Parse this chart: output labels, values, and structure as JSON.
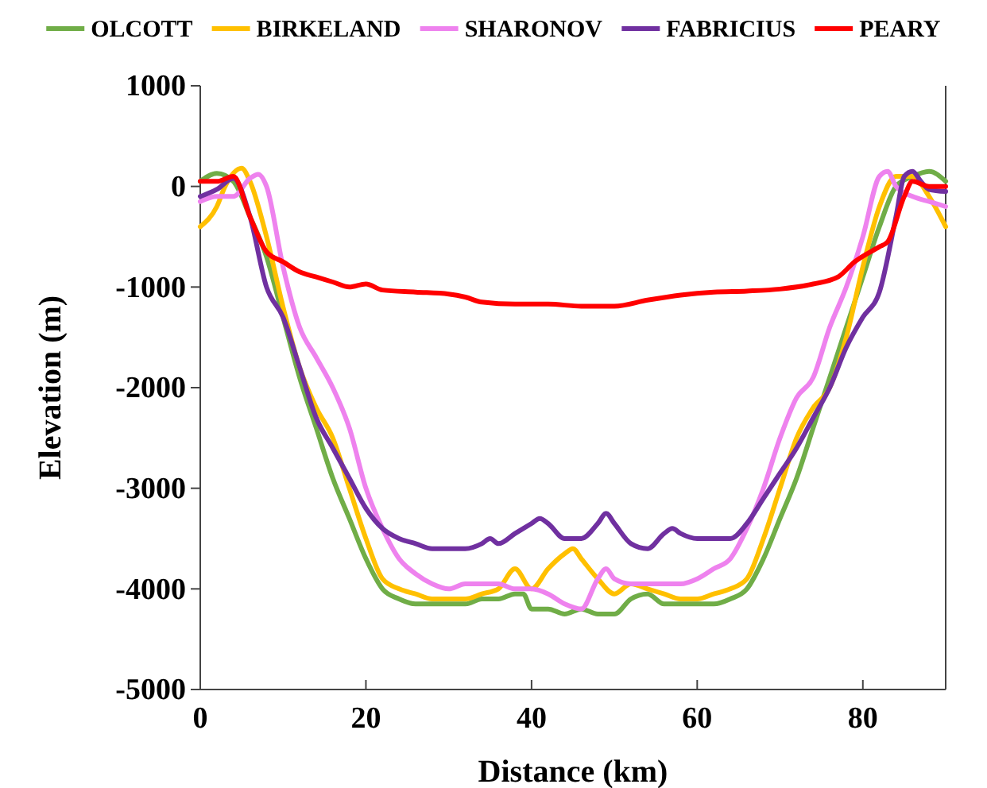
{
  "chart_data": {
    "type": "line",
    "xlabel": "Distance (km)",
    "ylabel": "Elevation (m)",
    "xlim": [
      0,
      90
    ],
    "xticks": [
      0,
      20,
      40,
      60,
      80
    ],
    "ylim": [
      -5000,
      1000
    ],
    "yticks": [
      -5000,
      -4000,
      -3000,
      -2000,
      -1000,
      0,
      1000
    ],
    "grid": false,
    "legend": "top",
    "marker": "none",
    "line_style": "solid",
    "series": [
      {
        "name": "OLCOTT",
        "color": "#70ad47",
        "x": [
          0,
          2,
          4,
          6,
          8,
          10,
          12,
          14,
          16,
          18,
          20,
          22,
          24,
          26,
          28,
          30,
          32,
          34,
          36,
          38,
          39,
          40,
          42,
          44,
          46,
          48,
          50,
          52,
          54,
          56,
          58,
          60,
          62,
          64,
          66,
          68,
          70,
          72,
          74,
          76,
          78,
          80,
          82,
          84,
          86,
          88,
          90
        ],
        "values": [
          50,
          130,
          50,
          -300,
          -700,
          -1300,
          -1900,
          -2400,
          -2900,
          -3300,
          -3700,
          -4000,
          -4100,
          -4150,
          -4150,
          -4150,
          -4150,
          -4100,
          -4100,
          -4050,
          -4050,
          -4200,
          -4200,
          -4250,
          -4200,
          -4250,
          -4250,
          -4100,
          -4050,
          -4150,
          -4150,
          -4150,
          -4150,
          -4100,
          -4000,
          -3700,
          -3300,
          -2900,
          -2400,
          -1900,
          -1400,
          -900,
          -400,
          0,
          100,
          150,
          50
        ]
      },
      {
        "name": "BIRKELAND",
        "color": "#ffc000",
        "x": [
          0,
          2,
          3,
          5,
          6,
          8,
          10,
          12,
          14,
          16,
          18,
          20,
          22,
          24,
          26,
          28,
          30,
          32,
          34,
          36,
          38,
          40,
          42,
          44,
          45,
          46,
          48,
          50,
          52,
          54,
          56,
          58,
          60,
          62,
          64,
          66,
          68,
          70,
          72,
          74,
          76,
          78,
          80,
          82,
          84,
          86,
          88,
          90
        ],
        "values": [
          -400,
          -200,
          0,
          180,
          50,
          -500,
          -1200,
          -1800,
          -2200,
          -2500,
          -3000,
          -3500,
          -3900,
          -4000,
          -4050,
          -4100,
          -4100,
          -4100,
          -4050,
          -4000,
          -3800,
          -4000,
          -3800,
          -3650,
          -3600,
          -3700,
          -3900,
          -4050,
          -3950,
          -4000,
          -4050,
          -4100,
          -4100,
          -4050,
          -4000,
          -3900,
          -3500,
          -3000,
          -2500,
          -2200,
          -2000,
          -1500,
          -800,
          -200,
          100,
          100,
          -100,
          -400
        ]
      },
      {
        "name": "SHARONOV",
        "color": "#ee82ee",
        "x": [
          0,
          2,
          4,
          6,
          7,
          8,
          10,
          12,
          14,
          16,
          18,
          20,
          22,
          24,
          26,
          28,
          30,
          32,
          34,
          36,
          38,
          40,
          42,
          44,
          46,
          48,
          49,
          50,
          52,
          54,
          56,
          58,
          60,
          62,
          64,
          66,
          68,
          70,
          72,
          74,
          76,
          78,
          80,
          82,
          83,
          84,
          86,
          88,
          90
        ],
        "values": [
          -150,
          -100,
          -100,
          80,
          120,
          0,
          -800,
          -1400,
          -1700,
          -2000,
          -2400,
          -3000,
          -3400,
          -3700,
          -3850,
          -3950,
          -4000,
          -3950,
          -3950,
          -3950,
          -4000,
          -4000,
          -4050,
          -4150,
          -4200,
          -3900,
          -3800,
          -3900,
          -3950,
          -3950,
          -3950,
          -3950,
          -3900,
          -3800,
          -3700,
          -3400,
          -3000,
          -2500,
          -2100,
          -1900,
          -1400,
          -1000,
          -500,
          100,
          150,
          0,
          -100,
          -150,
          -200
        ]
      },
      {
        "name": "FABRICIUS",
        "color": "#7030a0",
        "x": [
          0,
          2,
          4,
          6,
          8,
          10,
          12,
          14,
          16,
          18,
          20,
          22,
          24,
          26,
          28,
          30,
          32,
          34,
          35,
          36,
          38,
          40,
          41,
          42,
          44,
          46,
          48,
          49,
          50,
          52,
          54,
          56,
          57,
          58,
          60,
          62,
          64,
          66,
          68,
          70,
          72,
          74,
          76,
          78,
          80,
          82,
          84,
          85,
          86,
          87,
          88,
          90
        ],
        "values": [
          -100,
          -30,
          80,
          -300,
          -1000,
          -1300,
          -1800,
          -2300,
          -2600,
          -2900,
          -3200,
          -3400,
          -3500,
          -3550,
          -3600,
          -3600,
          -3600,
          -3550,
          -3500,
          -3550,
          -3450,
          -3350,
          -3300,
          -3350,
          -3500,
          -3500,
          -3350,
          -3250,
          -3350,
          -3550,
          -3600,
          -3450,
          -3400,
          -3450,
          -3500,
          -3500,
          -3500,
          -3350,
          -3100,
          -2850,
          -2600,
          -2300,
          -2000,
          -1600,
          -1300,
          -1050,
          -300,
          100,
          150,
          50,
          -30,
          -50
        ]
      },
      {
        "name": "PEARY",
        "color": "#ff0000",
        "x": [
          0,
          2,
          4,
          6,
          8,
          10,
          12,
          14,
          16,
          18,
          20,
          22,
          26,
          30,
          32,
          34,
          38,
          42,
          46,
          50,
          54,
          58,
          62,
          66,
          70,
          74,
          77,
          79,
          82,
          83,
          85,
          86,
          88,
          90
        ],
        "values": [
          50,
          50,
          100,
          -300,
          -650,
          -750,
          -850,
          -900,
          -950,
          -1000,
          -970,
          -1030,
          -1050,
          -1070,
          -1100,
          -1150,
          -1170,
          -1170,
          -1190,
          -1190,
          -1130,
          -1080,
          -1050,
          -1040,
          -1020,
          -970,
          -900,
          -750,
          -600,
          -550,
          -100,
          50,
          0,
          0
        ]
      }
    ]
  }
}
